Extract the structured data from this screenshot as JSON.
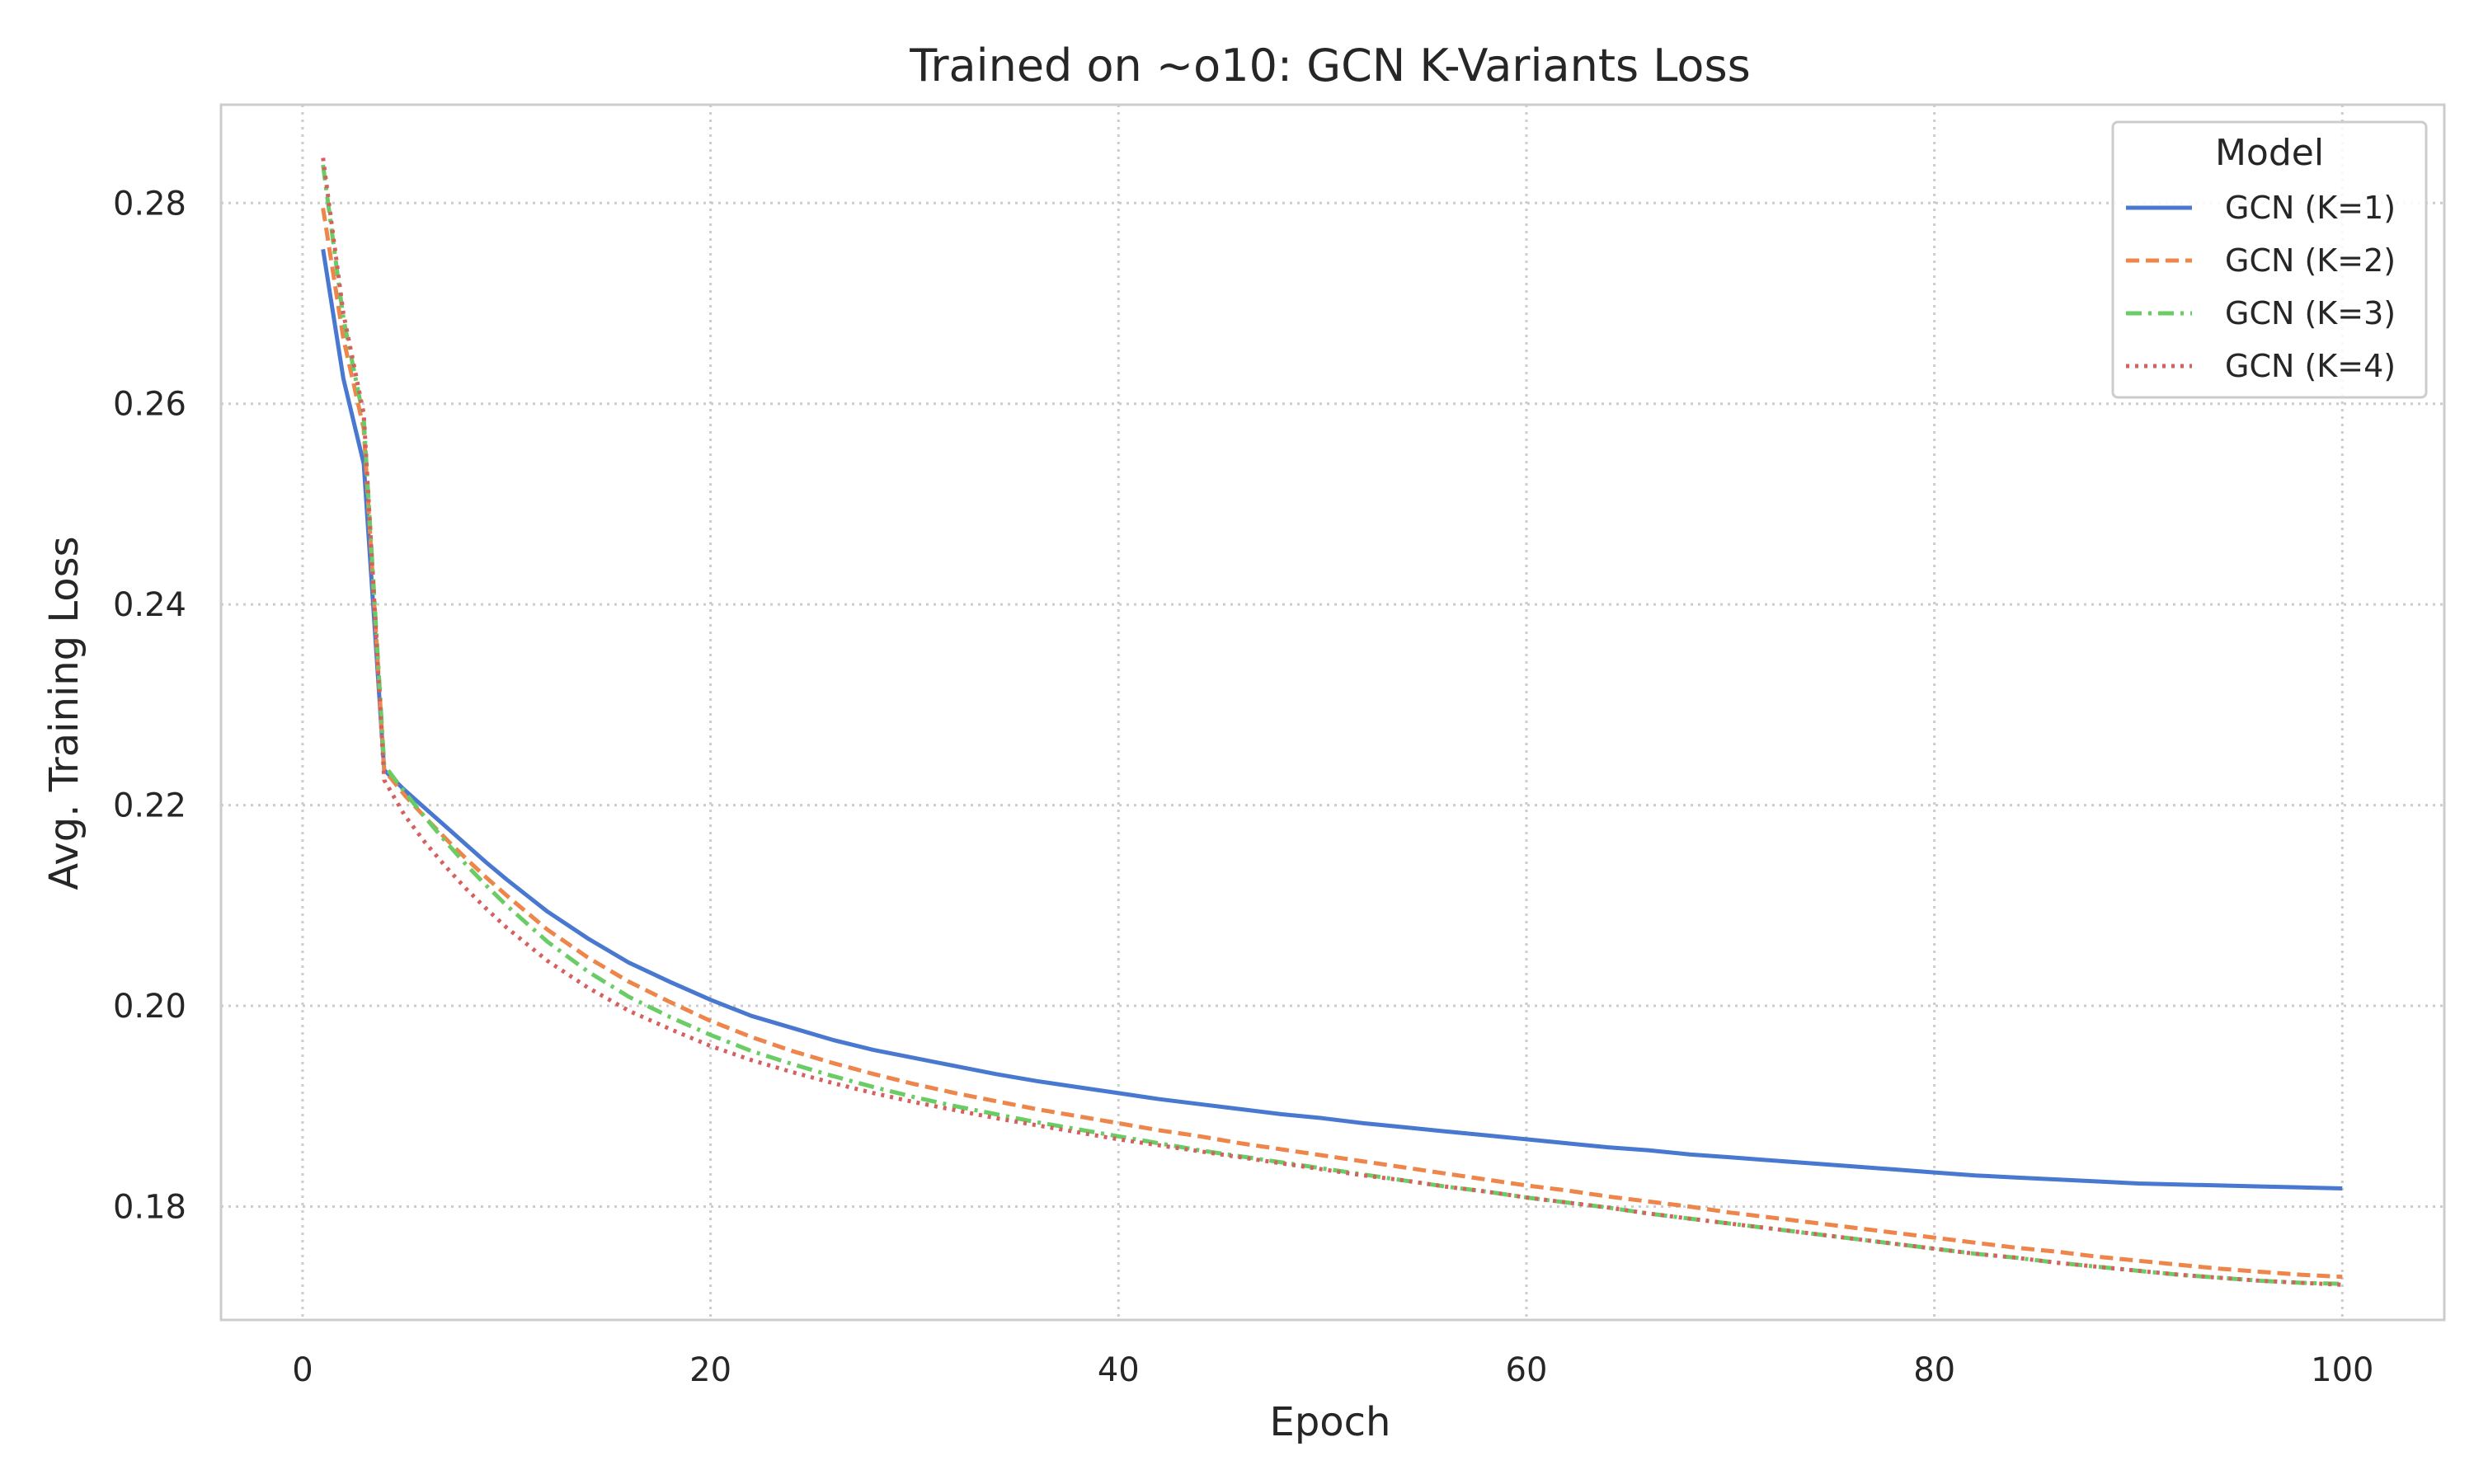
{
  "chart_data": {
    "type": "line",
    "title": "Trained on ~o10: GCN K-Variants Loss",
    "xlabel": "Epoch",
    "ylabel": "Avg. Training Loss",
    "xlim": [
      -4,
      105
    ],
    "ylim": [
      0.1687,
      0.2898
    ],
    "xticks": [
      0,
      20,
      40,
      60,
      80,
      100
    ],
    "xtick_labels": [
      "0",
      "20",
      "40",
      "60",
      "80",
      "100"
    ],
    "yticks": [
      0.18,
      0.2,
      0.22,
      0.24,
      0.26,
      0.28
    ],
    "ytick_labels": [
      "0.18",
      "0.20",
      "0.22",
      "0.24",
      "0.26",
      "0.28"
    ],
    "grid": true,
    "legend": {
      "title": "Model",
      "position": "top-right"
    },
    "series": [
      {
        "name": "GCN (K=1)",
        "color": "#4878d0",
        "dash": "solid",
        "x": [
          1,
          2,
          3,
          4,
          5,
          6,
          7,
          8,
          9,
          10,
          12,
          14,
          16,
          18,
          20,
          22,
          24,
          26,
          28,
          30,
          32,
          34,
          36,
          38,
          40,
          42,
          44,
          46,
          48,
          50,
          52,
          54,
          56,
          58,
          60,
          62,
          64,
          66,
          68,
          70,
          72,
          74,
          76,
          78,
          80,
          82,
          84,
          86,
          88,
          90,
          92,
          94,
          96,
          98,
          100
        ],
        "y": [
          0.2754,
          0.2625,
          0.254,
          0.2235,
          0.2215,
          0.2197,
          0.2179,
          0.2161,
          0.2143,
          0.2126,
          0.2094,
          0.2067,
          0.2043,
          0.2024,
          0.2006,
          0.199,
          0.1978,
          0.1966,
          0.1956,
          0.1948,
          0.194,
          0.1932,
          0.1925,
          0.1919,
          0.1913,
          0.1907,
          0.1902,
          0.1897,
          0.1892,
          0.1888,
          0.1883,
          0.1879,
          0.1875,
          0.1871,
          0.1867,
          0.1863,
          0.1859,
          0.1856,
          0.1852,
          0.1849,
          0.1846,
          0.1843,
          0.184,
          0.1837,
          0.1834,
          0.1831,
          0.1829,
          0.1827,
          0.1825,
          0.1823,
          0.1822,
          0.1821,
          0.182,
          0.1819,
          0.1818
        ]
      },
      {
        "name": "GCN (K=2)",
        "color": "#ee854a",
        "dash": "dashed",
        "x": [
          1,
          2,
          3,
          4,
          5,
          6,
          7,
          8,
          9,
          10,
          12,
          14,
          16,
          18,
          20,
          22,
          24,
          26,
          28,
          30,
          32,
          34,
          36,
          38,
          40,
          42,
          44,
          46,
          48,
          50,
          52,
          54,
          56,
          58,
          60,
          62,
          64,
          66,
          68,
          70,
          72,
          74,
          76,
          78,
          80,
          82,
          84,
          86,
          88,
          90,
          92,
          94,
          96,
          98,
          100
        ],
        "y": [
          0.2795,
          0.2665,
          0.2575,
          0.2235,
          0.221,
          0.2188,
          0.2167,
          0.2147,
          0.2128,
          0.211,
          0.2076,
          0.2048,
          0.2024,
          0.2004,
          0.1985,
          0.1969,
          0.1955,
          0.1943,
          0.1932,
          0.1922,
          0.1913,
          0.1905,
          0.1897,
          0.189,
          0.1883,
          0.1876,
          0.187,
          0.1863,
          0.1857,
          0.1851,
          0.1845,
          0.1839,
          0.1833,
          0.1827,
          0.1821,
          0.1816,
          0.181,
          0.1805,
          0.18,
          0.1794,
          0.1789,
          0.1784,
          0.1779,
          0.1774,
          0.1769,
          0.1764,
          0.1759,
          0.1755,
          0.175,
          0.1746,
          0.1742,
          0.1738,
          0.1735,
          0.1732,
          0.173
        ]
      },
      {
        "name": "GCN (K=3)",
        "color": "#6acc64",
        "dash": "dashdot",
        "x": [
          1,
          2,
          3,
          4,
          5,
          6,
          7,
          8,
          9,
          10,
          12,
          14,
          16,
          18,
          20,
          22,
          24,
          26,
          28,
          30,
          32,
          34,
          36,
          38,
          40,
          42,
          44,
          46,
          48,
          50,
          52,
          54,
          56,
          58,
          60,
          62,
          64,
          66,
          68,
          70,
          72,
          74,
          76,
          78,
          80,
          82,
          84,
          86,
          88,
          90,
          92,
          94,
          96,
          98,
          100
        ],
        "y": [
          0.2838,
          0.2685,
          0.2585,
          0.224,
          0.2213,
          0.2188,
          0.2164,
          0.2141,
          0.212,
          0.21,
          0.2064,
          0.2034,
          0.2009,
          0.1989,
          0.1971,
          0.1955,
          0.1942,
          0.193,
          0.1919,
          0.1909,
          0.19,
          0.1892,
          0.1884,
          0.1877,
          0.187,
          0.1863,
          0.1856,
          0.185,
          0.1844,
          0.1838,
          0.1832,
          0.1826,
          0.182,
          0.1815,
          0.1809,
          0.1804,
          0.1799,
          0.1793,
          0.1788,
          0.1783,
          0.1778,
          0.1773,
          0.1768,
          0.1763,
          0.1758,
          0.1753,
          0.1749,
          0.1744,
          0.174,
          0.1736,
          0.1732,
          0.1729,
          0.1726,
          0.1724,
          0.1723
        ]
      },
      {
        "name": "GCN (K=4)",
        "color": "#d65f5f",
        "dash": "dotted",
        "x": [
          1,
          2,
          3,
          4,
          5,
          6,
          7,
          8,
          9,
          10,
          12,
          14,
          16,
          18,
          20,
          22,
          24,
          26,
          28,
          30,
          32,
          34,
          36,
          38,
          40,
          42,
          44,
          46,
          48,
          50,
          52,
          54,
          56,
          58,
          60,
          62,
          64,
          66,
          68,
          70,
          72,
          74,
          76,
          78,
          80,
          82,
          84,
          86,
          88,
          90,
          92,
          94,
          96,
          98,
          100
        ],
        "y": [
          0.2845,
          0.269,
          0.259,
          0.2225,
          0.219,
          0.2163,
          0.2139,
          0.2117,
          0.2097,
          0.2078,
          0.2045,
          0.2018,
          0.1995,
          0.1977,
          0.196,
          0.1946,
          0.1934,
          0.1923,
          0.1913,
          0.1904,
          0.1896,
          0.1888,
          0.1881,
          0.1874,
          0.1867,
          0.1861,
          0.1855,
          0.1849,
          0.1843,
          0.1837,
          0.1831,
          0.1826,
          0.182,
          0.1815,
          0.1809,
          0.1804,
          0.1799,
          0.1793,
          0.1788,
          0.1783,
          0.1778,
          0.1773,
          0.1768,
          0.1763,
          0.1758,
          0.1753,
          0.1749,
          0.1744,
          0.174,
          0.1736,
          0.1732,
          0.1729,
          0.1726,
          0.1724,
          0.1722
        ]
      }
    ]
  }
}
